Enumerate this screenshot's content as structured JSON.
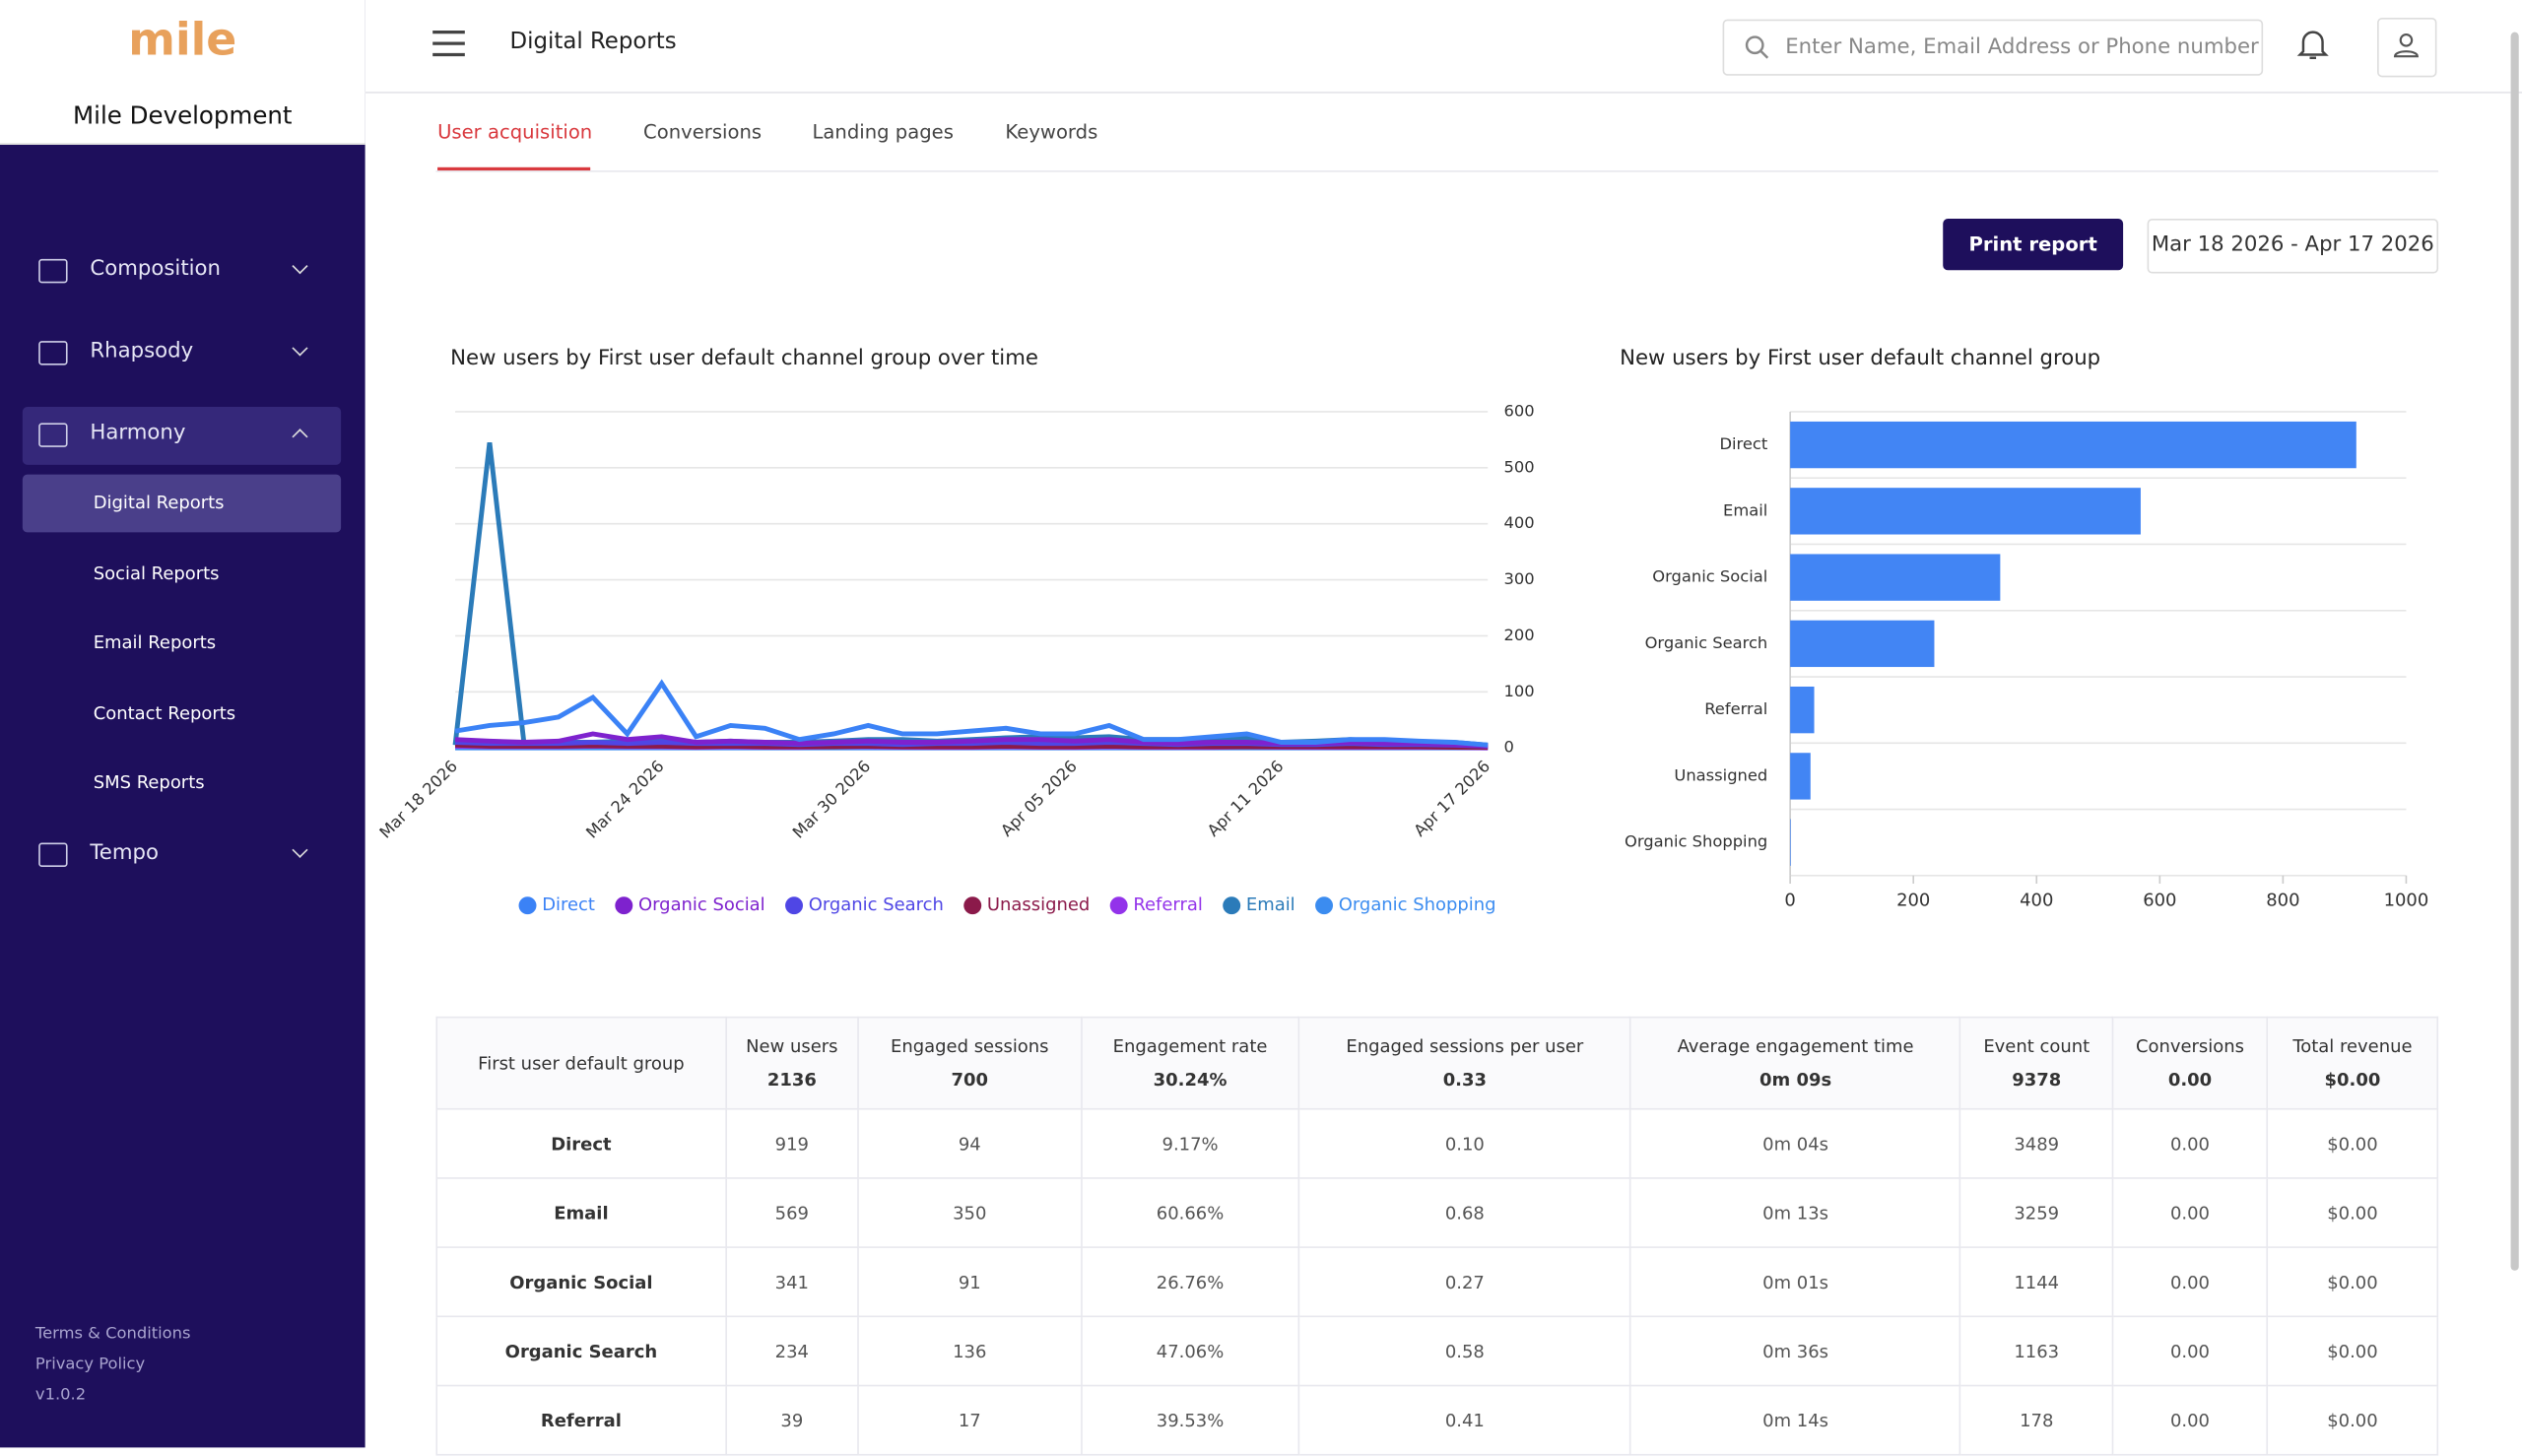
{
  "sidebar": {
    "logo": "mile",
    "org": "Mile Development",
    "menu": [
      {
        "label": "Composition"
      },
      {
        "label": "Rhapsody"
      },
      {
        "label": "Harmony",
        "items": [
          "Digital Reports",
          "Social Reports",
          "Email Reports",
          "Contact Reports",
          "SMS Reports"
        ]
      },
      {
        "label": "Tempo"
      }
    ],
    "footer": [
      "Terms & Conditions",
      "Privacy Policy",
      "v1.0.2"
    ]
  },
  "header": {
    "title": "Digital Reports",
    "search_placeholder": "Enter Name, Email Address or Phone number"
  },
  "tabs": [
    "User acquisition",
    "Conversions",
    "Landing pages",
    "Keywords"
  ],
  "actions": {
    "print": "Print report",
    "date_range": "Mar 18 2026 - Apr 17 2026"
  },
  "chart_data": [
    {
      "type": "line",
      "title": "New users by First user default channel group over time",
      "categories": [
        "Mar 18 2026",
        null,
        null,
        null,
        null,
        null,
        "Mar 24 2026",
        null,
        null,
        null,
        null,
        null,
        "Mar 30 2026",
        null,
        null,
        null,
        null,
        null,
        "Apr 05 2026",
        null,
        null,
        null,
        null,
        null,
        "Apr 11 2026",
        null,
        null,
        null,
        null,
        null,
        "Apr 17 2026"
      ],
      "ylim": [
        0,
        600
      ],
      "yticks": [
        0,
        100,
        200,
        300,
        400,
        500,
        600
      ],
      "grid": true,
      "legend": "bottom",
      "series": [
        {
          "name": "Direct",
          "color": "#3b82f6",
          "values": [
            30,
            40,
            45,
            55,
            90,
            25,
            115,
            20,
            40,
            35,
            15,
            25,
            40,
            25,
            25,
            30,
            35,
            25,
            25,
            40,
            15,
            15,
            20,
            25,
            10,
            10,
            15,
            15,
            12,
            10,
            5
          ]
        },
        {
          "name": "Organic Social",
          "color": "#7e22ce",
          "values": [
            15,
            12,
            10,
            12,
            25,
            15,
            20,
            10,
            12,
            10,
            8,
            10,
            12,
            10,
            10,
            12,
            15,
            15,
            12,
            15,
            10,
            8,
            10,
            10,
            8,
            8,
            10,
            8,
            8,
            6,
            3
          ]
        },
        {
          "name": "Organic Search",
          "color": "#4f46e5",
          "values": [
            10,
            8,
            8,
            8,
            10,
            8,
            10,
            8,
            8,
            8,
            6,
            8,
            8,
            6,
            8,
            8,
            10,
            8,
            8,
            10,
            8,
            6,
            8,
            8,
            6,
            6,
            8,
            6,
            6,
            5,
            3
          ]
        },
        {
          "name": "Unassigned",
          "color": "#8b1a4a",
          "values": [
            5,
            3,
            3,
            3,
            4,
            3,
            3,
            2,
            3,
            2,
            2,
            2,
            3,
            2,
            2,
            2,
            3,
            2,
            2,
            3,
            2,
            2,
            2,
            2,
            2,
            2,
            2,
            2,
            2,
            1,
            1
          ]
        },
        {
          "name": "Referral",
          "color": "#9333ea",
          "values": [
            3,
            2,
            2,
            2,
            3,
            2,
            2,
            1,
            2,
            1,
            1,
            2,
            2,
            1,
            1,
            1,
            2,
            1,
            1,
            2,
            1,
            1,
            1,
            2,
            1,
            1,
            1,
            1,
            1,
            1,
            0
          ]
        },
        {
          "name": "Email",
          "color": "#2b7bb9",
          "values": [
            5,
            545,
            8,
            10,
            10,
            12,
            15,
            10,
            12,
            10,
            10,
            12,
            15,
            15,
            12,
            15,
            18,
            20,
            18,
            20,
            15,
            15,
            15,
            18,
            10,
            12,
            15,
            12,
            10,
            10,
            5
          ]
        },
        {
          "name": "Organic Shopping",
          "color": "#3b8cf0",
          "values": [
            0,
            0,
            0,
            0,
            0,
            0,
            0,
            0,
            0,
            0,
            0,
            0,
            0,
            0,
            0,
            0,
            0,
            0,
            0,
            0,
            0,
            0,
            0,
            0,
            0,
            0,
            0,
            0,
            0,
            0,
            0
          ]
        }
      ]
    },
    {
      "type": "hbar",
      "title": "New users by First user default channel group",
      "categories": [
        "Direct",
        "Email",
        "Organic Social",
        "Organic Search",
        "Referral",
        "Unassigned",
        "Organic Shopping"
      ],
      "values": [
        919,
        569,
        341,
        234,
        39,
        33,
        1
      ],
      "color": "#4285f4",
      "xlim": [
        0,
        1000
      ],
      "xticks": [
        0,
        200,
        400,
        600,
        800,
        1000
      ],
      "grid": true
    }
  ],
  "table": {
    "columns": [
      {
        "label": "First user default group"
      },
      {
        "label": "New users",
        "total": "2136"
      },
      {
        "label": "Engaged sessions",
        "total": "700"
      },
      {
        "label": "Engagement rate",
        "total": "30.24%"
      },
      {
        "label": "Engaged sessions per user",
        "total": "0.33"
      },
      {
        "label": "Average engagement time",
        "total": "0m 09s"
      },
      {
        "label": "Event count",
        "total": "9378"
      },
      {
        "label": "Conversions",
        "total": "0.00"
      },
      {
        "label": "Total revenue",
        "total": "$0.00"
      }
    ],
    "rows": [
      [
        "Direct",
        "919",
        "94",
        "9.17%",
        "0.10",
        "0m 04s",
        "3489",
        "0.00",
        "$0.00"
      ],
      [
        "Email",
        "569",
        "350",
        "60.66%",
        "0.68",
        "0m 13s",
        "3259",
        "0.00",
        "$0.00"
      ],
      [
        "Organic Social",
        "341",
        "91",
        "26.76%",
        "0.27",
        "0m 01s",
        "1144",
        "0.00",
        "$0.00"
      ],
      [
        "Organic Search",
        "234",
        "136",
        "47.06%",
        "0.58",
        "0m 36s",
        "1163",
        "0.00",
        "$0.00"
      ],
      [
        "Referral",
        "39",
        "17",
        "39.53%",
        "0.41",
        "0m 14s",
        "178",
        "0.00",
        "$0.00"
      ]
    ]
  }
}
